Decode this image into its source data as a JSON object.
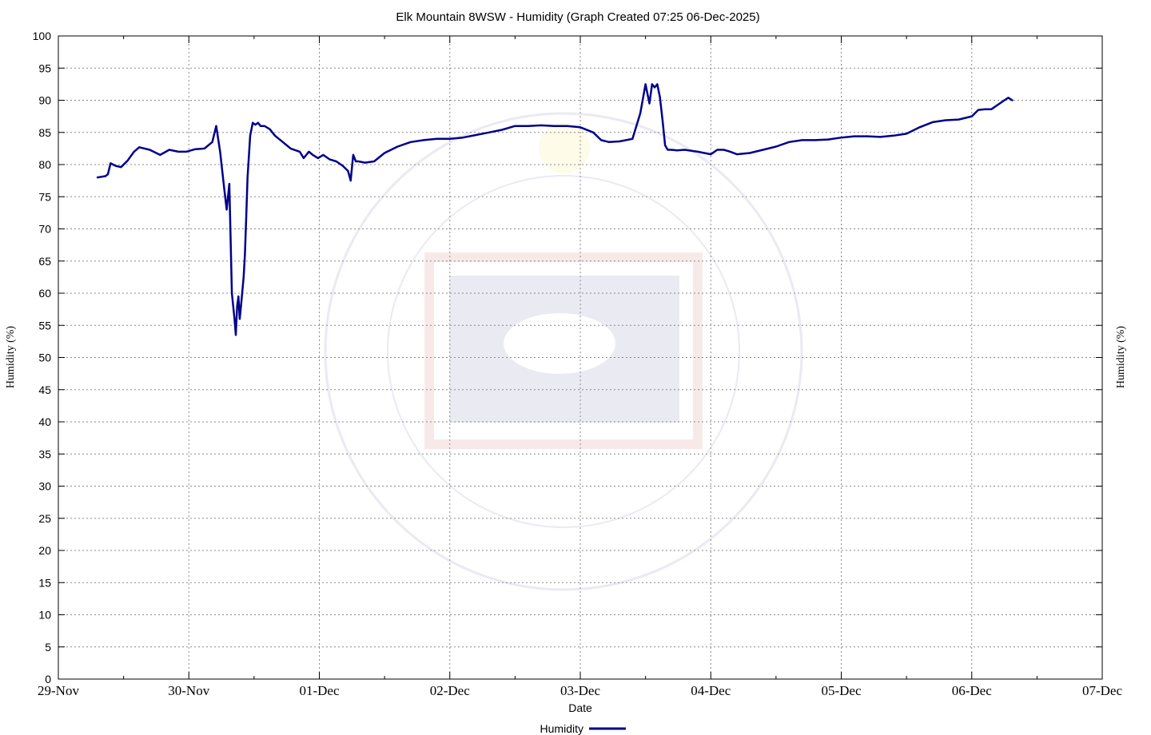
{
  "chart_data": {
    "type": "line",
    "title": "Elk Mountain 8WSW - Humidity (Graph Created 07:25 06-Dec-2025)",
    "xlabel": "Date",
    "ylabel": "Humidity (%)",
    "ylabel_right": "Humidity (%)",
    "x_unit": "days since 29-Nov",
    "xlim": [
      0,
      8
    ],
    "ylim": [
      0,
      100
    ],
    "x_ticks": [
      "29-Nov",
      "30-Nov",
      "01-Dec",
      "02-Dec",
      "03-Dec",
      "04-Dec",
      "05-Dec",
      "06-Dec",
      "07-Dec"
    ],
    "y_ticks": [
      0,
      5,
      10,
      15,
      20,
      25,
      30,
      35,
      40,
      45,
      50,
      55,
      60,
      65,
      70,
      75,
      80,
      85,
      90,
      95,
      100
    ],
    "grid": true,
    "legend": "bottom-center",
    "series": [
      {
        "name": "Humidity",
        "color": "#00008b",
        "x": [
          0.3,
          0.36,
          0.38,
          0.4,
          0.44,
          0.48,
          0.53,
          0.58,
          0.62,
          0.7,
          0.78,
          0.85,
          0.92,
          0.98,
          1.05,
          1.12,
          1.18,
          1.21,
          1.24,
          1.27,
          1.29,
          1.31,
          1.33,
          1.35,
          1.36,
          1.37,
          1.38,
          1.39,
          1.4,
          1.42,
          1.43,
          1.44,
          1.45,
          1.47,
          1.49,
          1.51,
          1.53,
          1.55,
          1.58,
          1.62,
          1.66,
          1.72,
          1.78,
          1.85,
          1.88,
          1.92,
          1.95,
          1.99,
          2.03,
          2.08,
          2.13,
          2.18,
          2.22,
          2.24,
          2.26,
          2.28,
          2.3,
          2.35,
          2.42,
          2.5,
          2.6,
          2.7,
          2.8,
          2.9,
          3.0,
          3.1,
          3.2,
          3.3,
          3.4,
          3.5,
          3.6,
          3.7,
          3.8,
          3.9,
          4.0,
          4.1,
          4.16,
          4.22,
          4.3,
          4.4,
          4.46,
          4.5,
          4.53,
          4.55,
          4.57,
          4.59,
          4.61,
          4.63,
          4.65,
          4.67,
          4.7,
          4.74,
          4.8,
          4.9,
          5.0,
          5.05,
          5.1,
          5.15,
          5.2,
          5.3,
          5.4,
          5.5,
          5.6,
          5.7,
          5.8,
          5.9,
          6.0,
          6.1,
          6.2,
          6.3,
          6.4,
          6.5,
          6.6,
          6.7,
          6.8,
          6.9,
          7.0,
          7.05,
          7.1,
          7.15,
          7.2,
          7.25,
          7.28,
          7.31
        ],
        "y": [
          78.0,
          78.2,
          78.5,
          80.2,
          79.8,
          79.6,
          80.6,
          82.0,
          82.7,
          82.3,
          81.5,
          82.3,
          82.0,
          82.0,
          82.4,
          82.5,
          83.5,
          86.0,
          82.0,
          76.5,
          73.0,
          77.0,
          60.0,
          56.0,
          53.5,
          58.0,
          59.5,
          56.0,
          58.0,
          62.5,
          66.0,
          72.0,
          78.0,
          84.5,
          86.5,
          86.2,
          86.5,
          86.0,
          86.0,
          85.5,
          84.5,
          83.5,
          82.5,
          82.0,
          81.0,
          82.0,
          81.5,
          81.0,
          81.5,
          80.8,
          80.5,
          79.8,
          79.0,
          77.5,
          81.5,
          80.5,
          80.5,
          80.3,
          80.5,
          81.8,
          82.8,
          83.5,
          83.8,
          84.0,
          84.0,
          84.2,
          84.6,
          85.0,
          85.4,
          86.0,
          86.0,
          86.1,
          86.0,
          86.0,
          85.8,
          85.0,
          83.8,
          83.5,
          83.6,
          84.0,
          88.0,
          92.5,
          89.5,
          92.5,
          92.0,
          92.5,
          90.5,
          87.0,
          83.0,
          82.3,
          82.3,
          82.2,
          82.3,
          82.0,
          81.6,
          82.3,
          82.3,
          82.0,
          81.6,
          81.8,
          82.3,
          82.8,
          83.5,
          83.8,
          83.8,
          83.9,
          84.2,
          84.4,
          84.4,
          84.3,
          84.5,
          84.8,
          85.8,
          86.6,
          86.9,
          87.0,
          87.5,
          88.5,
          88.6,
          88.6,
          89.3,
          90.0,
          90.4,
          90.0
        ]
      }
    ]
  }
}
